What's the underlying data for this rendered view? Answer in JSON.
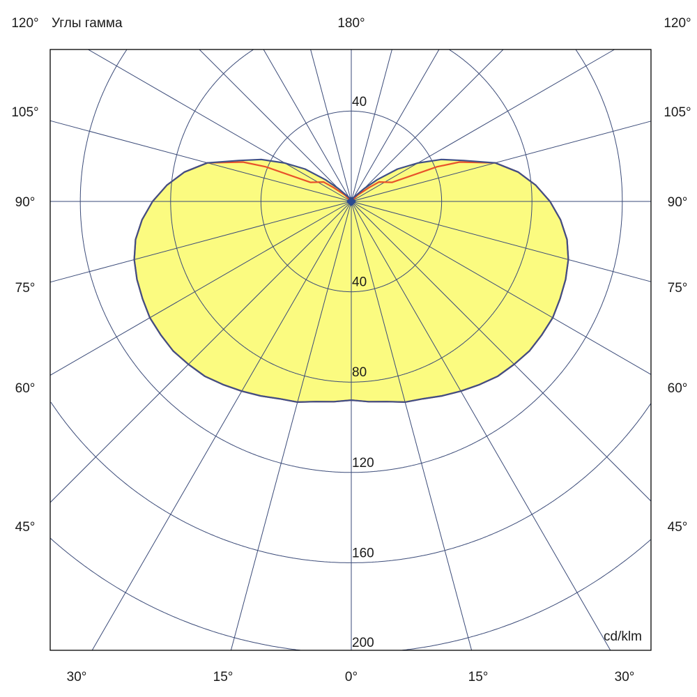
{
  "chart_data": {
    "type": "polar",
    "title": "Углы гамма",
    "unit_label": "cd/klm",
    "top_angle_label": "180°",
    "left_angle_labels": [
      "120°",
      "105°",
      "90°",
      "75°",
      "60°",
      "45°"
    ],
    "right_angle_labels": [
      "120°",
      "105°",
      "90°",
      "75°",
      "60°",
      "45°"
    ],
    "bottom_angle_labels": [
      "30°",
      "15°",
      "0°",
      "15°",
      "30°"
    ],
    "top_radial_label": "40",
    "radial_labels": [
      "40",
      "80",
      "120",
      "160",
      "200"
    ],
    "radial_rings": [
      40,
      80,
      120,
      160,
      200
    ],
    "radial_max": 200,
    "spoke_step_deg": 15,
    "colors": {
      "fill": "#fbfb80",
      "series_1": "#3f4f86",
      "series_2": "#e8522a",
      "grid": "#3a4a78",
      "frame": "#000000"
    },
    "series": [
      {
        "gamma": [
          0,
          5,
          10,
          15,
          20,
          25,
          30,
          35,
          40,
          45,
          50,
          55,
          60,
          65,
          70,
          75,
          80,
          85,
          90,
          95,
          100,
          105,
          110,
          115,
          120,
          125,
          130,
          135,
          140,
          150,
          160,
          180
        ],
        "values": [
          88,
          89,
          90,
          92,
          93,
          95,
          97,
          99,
          101,
          102,
          103,
          103,
          103,
          102,
          101,
          99.5,
          97,
          93,
          88,
          82,
          75,
          66,
          53,
          44,
          34,
          25,
          15,
          8,
          4,
          2,
          1,
          0
        ]
      },
      {
        "gamma": [
          0,
          5,
          10,
          15,
          20,
          25,
          30,
          35,
          40,
          45,
          50,
          55,
          60,
          65,
          70,
          75,
          80,
          85,
          90,
          95,
          100,
          105,
          110,
          112,
          115,
          125,
          128,
          135,
          140,
          180
        ],
        "values": [
          88,
          89,
          90,
          92,
          93,
          95,
          97,
          99,
          101,
          102,
          103,
          103,
          103,
          102,
          101,
          99.5,
          97,
          93,
          88,
          82,
          75,
          66,
          51,
          41,
          20,
          15,
          10,
          4,
          0,
          0
        ]
      }
    ]
  }
}
